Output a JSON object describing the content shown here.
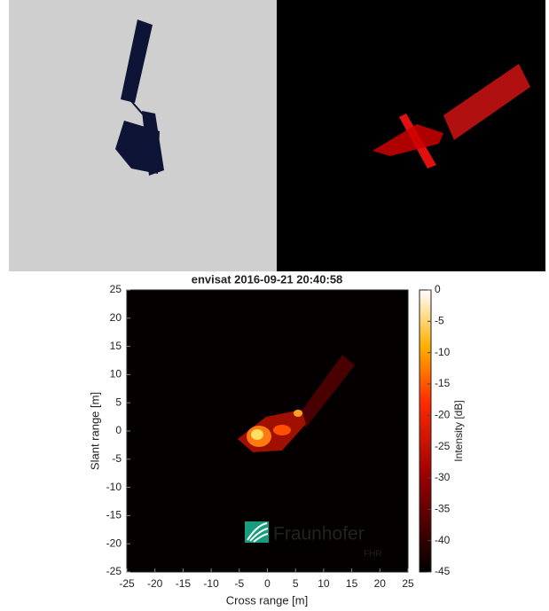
{
  "chart_data": {
    "type": "image",
    "title": "envisat 2016-09-21 20:40:58",
    "x_label": "Cross range [m]",
    "y_label": "Slant range [m]",
    "xlim": [
      -25,
      25
    ],
    "xticks": [
      -25,
      -20,
      -15,
      -10,
      -5,
      0,
      5,
      10,
      15,
      20,
      25
    ],
    "ylim": [
      -25,
      25
    ],
    "yticks": [
      -25,
      -20,
      -15,
      -10,
      -5,
      0,
      5,
      10,
      15,
      20,
      25
    ],
    "colorbar": {
      "label": "Intensity [dB]",
      "lim": [
        -45,
        0
      ],
      "ticks": [
        0,
        -5,
        -10,
        -15,
        -20,
        -25,
        -30,
        -35,
        -40,
        -45
      ]
    },
    "logo": {
      "name": "Fraunhofer",
      "unit": "FHR"
    }
  }
}
